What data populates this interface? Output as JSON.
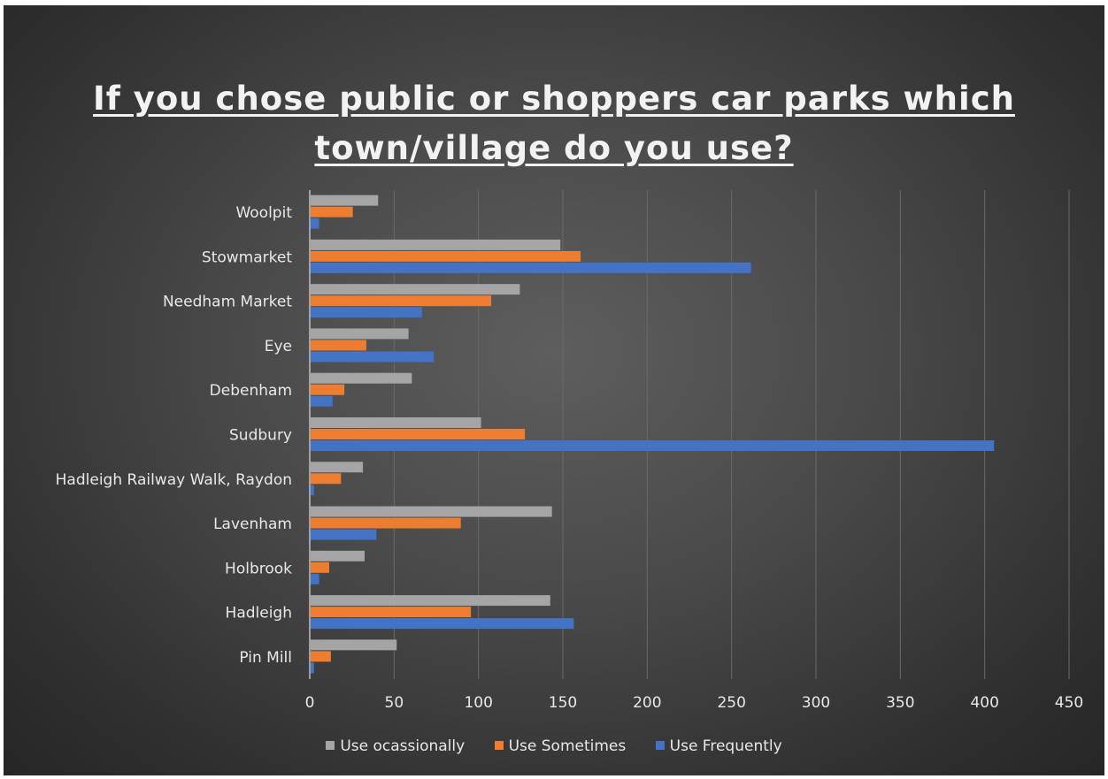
{
  "chart_data": {
    "type": "bar",
    "orientation": "horizontal",
    "title_lines": [
      "If you chose public or shoppers car parks which",
      "town/village do you use?"
    ],
    "categories": [
      "Woolpit",
      "Stowmarket",
      "Needham Market",
      "Eye",
      "Debenham",
      "Sudbury",
      "Hadleigh Railway Walk, Raydon",
      "Lavenham",
      "Holbrook",
      "Hadleigh",
      "Pin Mill"
    ],
    "series": [
      {
        "name": "Use ocassionally",
        "color": "#a5a5a5",
        "values": [
          40,
          148,
          124,
          58,
          60,
          101,
          31,
          143,
          32,
          142,
          51
        ]
      },
      {
        "name": "Use Sometimes",
        "color": "#ed7d31",
        "values": [
          25,
          160,
          107,
          33,
          20,
          127,
          18,
          89,
          11,
          95,
          12
        ]
      },
      {
        "name": "Use Frequently",
        "color": "#4472c4",
        "values": [
          5,
          261,
          66,
          73,
          13,
          405,
          2,
          39,
          5,
          156,
          2
        ]
      }
    ],
    "x_ticks": [
      "0",
      "50",
      "100",
      "150",
      "200",
      "250",
      "300",
      "350",
      "400",
      "450"
    ],
    "xlim": [
      0,
      450
    ],
    "grid": true,
    "legend_position": "bottom"
  }
}
